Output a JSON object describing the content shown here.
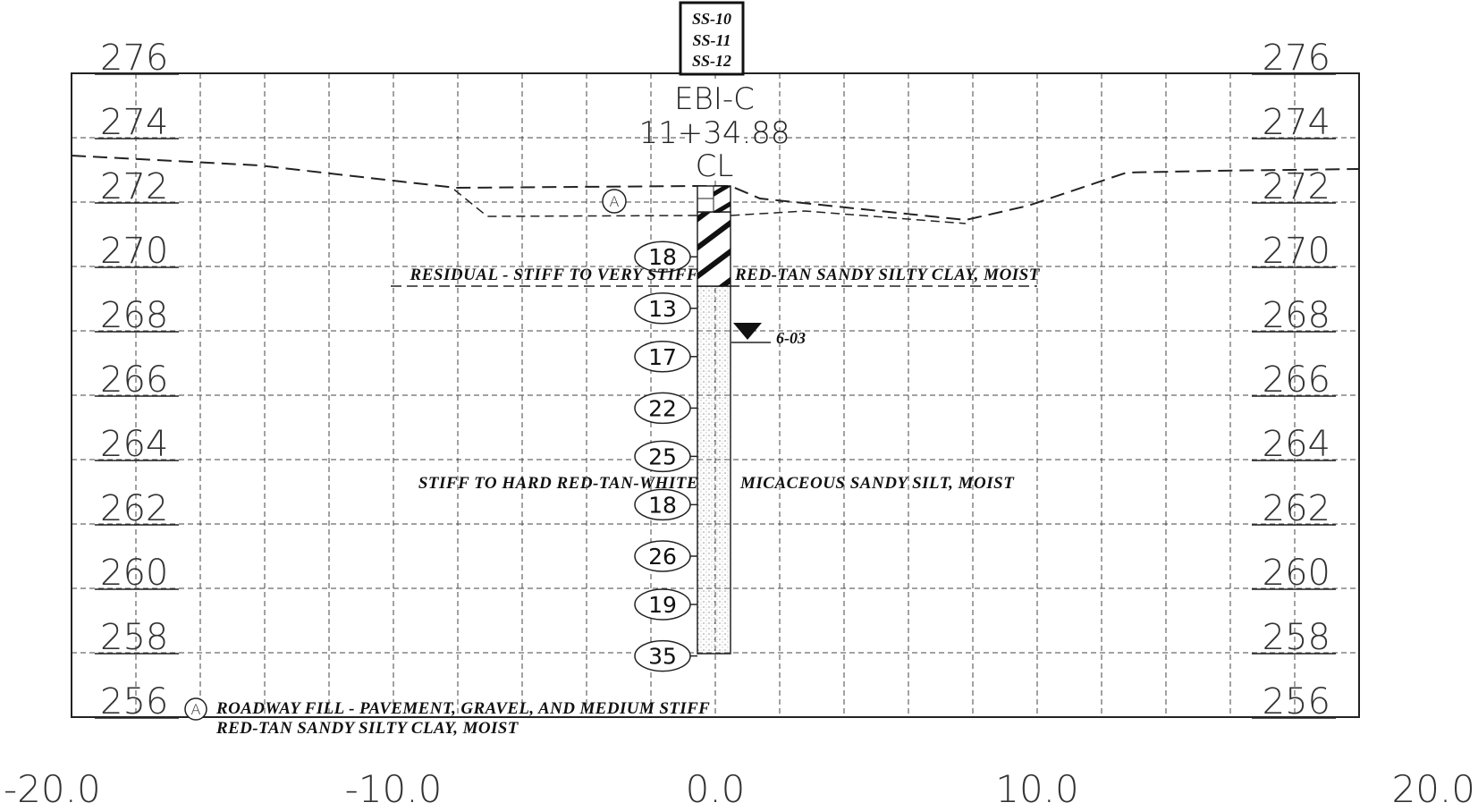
{
  "boring": {
    "samples": [
      "SS-10",
      "SS-11",
      "SS-12"
    ],
    "id": "EBI-C",
    "station": "11+34.88",
    "offset": "CL"
  },
  "axes": {
    "elevation_labels": [
      "276",
      "274",
      "272",
      "270",
      "268",
      "266",
      "264",
      "262",
      "260",
      "258",
      "256"
    ],
    "offset_labels": [
      "-20.0",
      "-10.0",
      "0.0",
      "10.0",
      "20.0"
    ]
  },
  "spt": {
    "values": [
      "18",
      "13",
      "17",
      "22",
      "25",
      "18",
      "26",
      "19",
      "35"
    ],
    "elevations": [
      270.3,
      268.7,
      267.2,
      265.6,
      264.1,
      262.6,
      261.0,
      259.5,
      257.9
    ]
  },
  "strata": {
    "residual_left": "RESIDUAL - STIFF TO VERY STIFF",
    "residual_right": "RED-TAN SANDY SILTY CLAY, MOIST",
    "silt_left": "STIFF TO HARD RED-TAN-WHITE",
    "silt_right": "MICACEOUS SANDY SILT, MOIST"
  },
  "water": {
    "label": "6-03",
    "elevation": 267.9
  },
  "legend": {
    "marker": "A",
    "line1": "ROADWAY FILL - PAVEMENT, GRAVEL, AND MEDIUM STIFF",
    "line2": "RED-TAN SANDY SILTY CLAY, MOIST"
  }
}
